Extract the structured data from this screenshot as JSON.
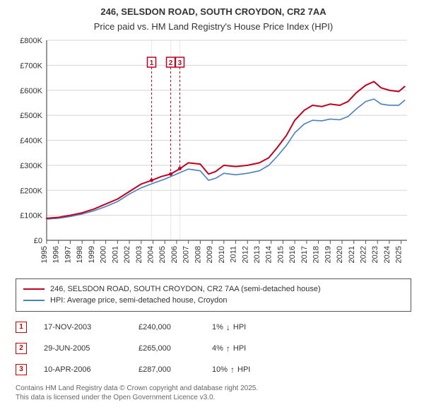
{
  "title_line1": "246, SELSDON ROAD, SOUTH CROYDON, CR2 7AA",
  "title_line2": "Price paid vs. HM Land Registry's House Price Index (HPI)",
  "chart": {
    "type": "line",
    "background_color": "#ffffff",
    "grid_color": "#d5d5d5",
    "axis_color": "#555555",
    "tick_fontsize": 11,
    "xlim": [
      1995,
      2025.5
    ],
    "ylim": [
      0,
      800
    ],
    "ytick_step": 100,
    "ytick_prefix": "£",
    "ytick_suffix": "K",
    "xticks": [
      1995,
      1996,
      1997,
      1998,
      1999,
      2000,
      2001,
      2002,
      2003,
      2004,
      2005,
      2006,
      2007,
      2008,
      2009,
      2010,
      2011,
      2012,
      2013,
      2014,
      2015,
      2016,
      2017,
      2018,
      2019,
      2020,
      2021,
      2022,
      2023,
      2024,
      2025
    ],
    "series": [
      {
        "id": "property",
        "label": "246, SELSDON ROAD, SOUTH CROYDON, CR2 7AA (semi-detached house)",
        "color": "#c1001f",
        "width": 2.0,
        "points": [
          [
            1995,
            88
          ],
          [
            1996,
            92
          ],
          [
            1997,
            100
          ],
          [
            1998,
            110
          ],
          [
            1999,
            125
          ],
          [
            2000,
            145
          ],
          [
            2001,
            165
          ],
          [
            2002,
            195
          ],
          [
            2003,
            225
          ],
          [
            2003.9,
            240
          ],
          [
            2004.7,
            255
          ],
          [
            2005.5,
            265
          ],
          [
            2006.3,
            287
          ],
          [
            2007,
            310
          ],
          [
            2008,
            305
          ],
          [
            2008.7,
            265
          ],
          [
            2009.3,
            275
          ],
          [
            2010,
            300
          ],
          [
            2011,
            295
          ],
          [
            2012,
            300
          ],
          [
            2013,
            310
          ],
          [
            2013.8,
            330
          ],
          [
            2014.5,
            370
          ],
          [
            2015.3,
            420
          ],
          [
            2016,
            480
          ],
          [
            2016.8,
            520
          ],
          [
            2017.5,
            540
          ],
          [
            2018.3,
            535
          ],
          [
            2019,
            545
          ],
          [
            2019.8,
            540
          ],
          [
            2020.5,
            555
          ],
          [
            2021.2,
            590
          ],
          [
            2022,
            620
          ],
          [
            2022.7,
            635
          ],
          [
            2023.3,
            610
          ],
          [
            2024,
            600
          ],
          [
            2024.8,
            595
          ],
          [
            2025.3,
            615
          ]
        ]
      },
      {
        "id": "hpi",
        "label": "HPI: Average price, semi-detached house, Croydon",
        "color": "#4a7fc1",
        "width": 1.6,
        "points": [
          [
            1995,
            85
          ],
          [
            1996,
            88
          ],
          [
            1997,
            95
          ],
          [
            1998,
            105
          ],
          [
            1999,
            118
          ],
          [
            2000,
            135
          ],
          [
            2001,
            155
          ],
          [
            2002,
            185
          ],
          [
            2003,
            210
          ],
          [
            2004,
            228
          ],
          [
            2005,
            245
          ],
          [
            2006,
            265
          ],
          [
            2007,
            285
          ],
          [
            2008,
            278
          ],
          [
            2008.7,
            240
          ],
          [
            2009.3,
            248
          ],
          [
            2010,
            268
          ],
          [
            2011,
            262
          ],
          [
            2012,
            268
          ],
          [
            2013,
            278
          ],
          [
            2013.8,
            300
          ],
          [
            2014.5,
            335
          ],
          [
            2015.3,
            380
          ],
          [
            2016,
            430
          ],
          [
            2016.8,
            465
          ],
          [
            2017.5,
            480
          ],
          [
            2018.3,
            478
          ],
          [
            2019,
            485
          ],
          [
            2019.8,
            482
          ],
          [
            2020.5,
            495
          ],
          [
            2021.2,
            525
          ],
          [
            2022,
            555
          ],
          [
            2022.7,
            565
          ],
          [
            2023.3,
            545
          ],
          [
            2024,
            540
          ],
          [
            2024.8,
            540
          ],
          [
            2025.3,
            560
          ]
        ]
      }
    ],
    "markers": [
      {
        "n": "1",
        "x": 2003.88,
        "y": 240,
        "box_color": "#c1001f"
      },
      {
        "n": "2",
        "x": 2005.5,
        "y": 265,
        "box_color": "#c1001f"
      },
      {
        "n": "3",
        "x": 2006.27,
        "y": 287,
        "box_color": "#c1001f"
      }
    ],
    "shade_bands": [
      {
        "from": 2003.84,
        "to": 2003.92,
        "fill": "#d5d5d5",
        "opacity": 0.45
      },
      {
        "from": 2005.46,
        "to": 2005.54,
        "fill": "#d5d5d5",
        "opacity": 0.45
      },
      {
        "from": 2006.23,
        "to": 2006.31,
        "fill": "#d5d5d5",
        "opacity": 0.45
      }
    ]
  },
  "legend": [
    {
      "color": "#c1001f",
      "width": 2.4,
      "label": "246, SELSDON ROAD, SOUTH CROYDON, CR2 7AA (semi-detached house)"
    },
    {
      "color": "#4a7fc1",
      "width": 1.8,
      "label": "HPI: Average price, semi-detached house, Croydon"
    }
  ],
  "transactions": [
    {
      "n": "1",
      "date": "17-NOV-2003",
      "price": "£240,000",
      "delta": "1%",
      "dir": "down",
      "delta_label": "HPI"
    },
    {
      "n": "2",
      "date": "29-JUN-2005",
      "price": "£265,000",
      "delta": "4%",
      "dir": "up",
      "delta_label": "HPI"
    },
    {
      "n": "3",
      "date": "10-APR-2006",
      "price": "£287,000",
      "delta": "10%",
      "dir": "up",
      "delta_label": "HPI"
    }
  ],
  "ui": {
    "arrow_up": "↑",
    "arrow_down": "↓"
  },
  "footnote_line1": "Contains HM Land Registry data © Crown copyright and database right 2025.",
  "footnote_line2": "This data is licensed under the Open Government Licence v3.0."
}
